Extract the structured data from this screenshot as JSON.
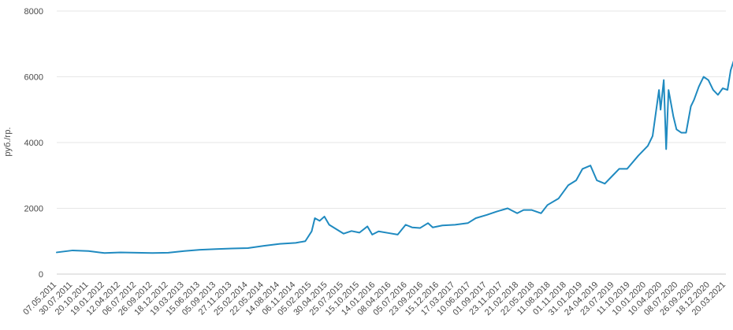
{
  "chart_data": {
    "type": "line",
    "title": "",
    "xlabel": "",
    "ylabel": "руб./гр.",
    "ylim": [
      0,
      8000
    ],
    "yticks": [
      "0",
      "2000",
      "4000",
      "6000",
      "8000"
    ],
    "grid": true,
    "legend": "none",
    "colors": {
      "line": "#1f8ac0",
      "grid": "#e6e6e6",
      "text": "#4a4a4a"
    },
    "xticks": [
      "07.05.2011",
      "30.07.2011",
      "20.10.2011",
      "19.01.2012",
      "12.04.2012",
      "06.07.2012",
      "26.09.2012",
      "18.12.2012",
      "19.03.2013",
      "15.06.2013",
      "05.09.2013",
      "27.11.2013",
      "25.02.2014",
      "22.05.2014",
      "14.08.2014",
      "06.11.2014",
      "05.02.2015",
      "30.04.2015",
      "25.07.2015",
      "15.10.2015",
      "14.01.2016",
      "08.04.2016",
      "05.07.2016",
      "23.09.2016",
      "15.12.2016",
      "17.03.2017",
      "10.06.2017",
      "01.09.2017",
      "23.11.2017",
      "21.02.2018",
      "22.05.2018",
      "11.08.2018",
      "01.11.2018",
      "31.01.2019",
      "24.04.2019",
      "23.07.2019",
      "11.10.2019",
      "10.01.2020",
      "10.04.2020",
      "08.07.2020",
      "26.09.2020",
      "18.12.2020",
      "20.03.2021"
    ],
    "series": [
      {
        "values": [
          [
            0,
            660
          ],
          [
            1,
            720
          ],
          [
            2,
            700
          ],
          [
            3,
            640
          ],
          [
            4,
            660
          ],
          [
            5,
            650
          ],
          [
            6,
            640
          ],
          [
            7,
            650
          ],
          [
            8,
            700
          ],
          [
            9,
            740
          ],
          [
            10,
            760
          ],
          [
            11,
            780
          ],
          [
            12,
            790
          ],
          [
            13,
            860
          ],
          [
            14,
            920
          ],
          [
            15,
            950
          ],
          [
            15.6,
            1000
          ],
          [
            16.0,
            1300
          ],
          [
            16.2,
            1700
          ],
          [
            16.5,
            1620
          ],
          [
            16.8,
            1750
          ],
          [
            17.1,
            1500
          ],
          [
            17.5,
            1380
          ],
          [
            18.0,
            1230
          ],
          [
            18.5,
            1310
          ],
          [
            19.0,
            1260
          ],
          [
            19.5,
            1450
          ],
          [
            19.8,
            1200
          ],
          [
            20.2,
            1300
          ],
          [
            20.8,
            1250
          ],
          [
            21.4,
            1200
          ],
          [
            21.9,
            1500
          ],
          [
            22.3,
            1420
          ],
          [
            22.8,
            1400
          ],
          [
            23.3,
            1550
          ],
          [
            23.6,
            1420
          ],
          [
            24.2,
            1480
          ],
          [
            25.0,
            1500
          ],
          [
            25.8,
            1550
          ],
          [
            26.3,
            1700
          ],
          [
            27.0,
            1800
          ],
          [
            27.6,
            1900
          ],
          [
            28.3,
            2000
          ],
          [
            28.9,
            1850
          ],
          [
            29.3,
            1950
          ],
          [
            29.8,
            1950
          ],
          [
            30.4,
            1850
          ],
          [
            30.8,
            2100
          ],
          [
            31.5,
            2300
          ],
          [
            32.1,
            2700
          ],
          [
            32.6,
            2850
          ],
          [
            33.0,
            3200
          ],
          [
            33.5,
            3300
          ],
          [
            33.9,
            2850
          ],
          [
            34.4,
            2750
          ],
          [
            34.9,
            3000
          ],
          [
            35.3,
            3200
          ],
          [
            35.8,
            3200
          ],
          [
            36.5,
            3600
          ],
          [
            37.1,
            3900
          ],
          [
            37.4,
            4200
          ],
          [
            37.6,
            4900
          ],
          [
            37.8,
            5600
          ],
          [
            37.9,
            5000
          ],
          [
            38.1,
            5900
          ],
          [
            38.25,
            3800
          ],
          [
            38.4,
            5600
          ],
          [
            38.7,
            4800
          ],
          [
            38.9,
            4400
          ],
          [
            39.2,
            4300
          ],
          [
            39.5,
            4300
          ],
          [
            39.8,
            5100
          ],
          [
            40.0,
            5300
          ],
          [
            40.3,
            5700
          ],
          [
            40.6,
            6000
          ],
          [
            40.9,
            5900
          ],
          [
            41.2,
            5600
          ],
          [
            41.5,
            5450
          ],
          [
            41.8,
            5650
          ],
          [
            42.1,
            5600
          ],
          [
            42.3,
            6200
          ],
          [
            42.5,
            6500
          ],
          [
            42.7,
            6900
          ],
          [
            42.85,
            7200
          ]
        ]
      }
    ]
  }
}
